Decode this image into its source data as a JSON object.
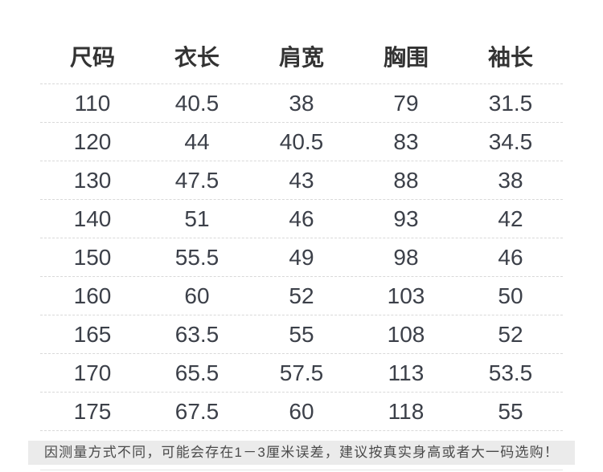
{
  "chart_data": {
    "type": "table",
    "title": "",
    "headers": [
      "尺码",
      "衣长",
      "肩宽",
      "胸围",
      "袖长"
    ],
    "rows": [
      [
        "110",
        "40.5",
        "38",
        "79",
        "31.5"
      ],
      [
        "120",
        "44",
        "40.5",
        "83",
        "34.5"
      ],
      [
        "130",
        "47.5",
        "43",
        "88",
        "38"
      ],
      [
        "140",
        "51",
        "46",
        "93",
        "42"
      ],
      [
        "150",
        "55.5",
        "49",
        "98",
        "46"
      ],
      [
        "160",
        "60",
        "52",
        "103",
        "50"
      ],
      [
        "165",
        "63.5",
        "55",
        "108",
        "52"
      ],
      [
        "170",
        "65.5",
        "57.5",
        "113",
        "53.5"
      ],
      [
        "175",
        "67.5",
        "60",
        "118",
        "55"
      ]
    ],
    "layout_hints": {
      "columns": 5,
      "row_separator": "dashed",
      "alignment": "center"
    }
  },
  "note": {
    "text": "因测量方式不同，可能会存在1－3厘米误差，建议按真实身高或者大一码选购！"
  },
  "colors": {
    "background": "#ffffff",
    "header_text": "#333333",
    "number_text": "#3c4049",
    "divider": "#d9d9d9",
    "note_background": "#ebebeb",
    "note_text": "#4a4a4a",
    "footer_line": "#e5e5e5"
  }
}
